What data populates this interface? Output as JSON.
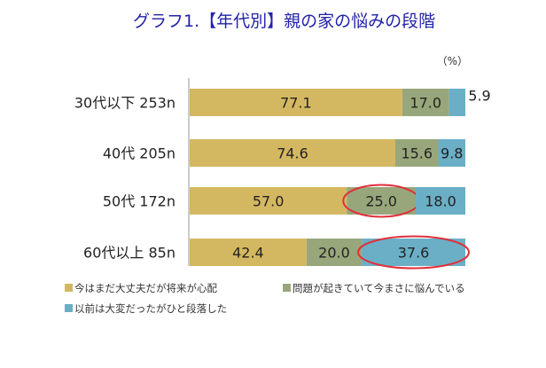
{
  "chart_data": {
    "type": "bar",
    "orientation": "horizontal",
    "stacked": true,
    "title": "グラフ1.【年代別】親の家の悩みの段階",
    "unit_label": "（%）",
    "categories": [
      "30代以下 253n",
      "40代 205n",
      "50代 172n",
      "60代以上 85n"
    ],
    "series": [
      {
        "name": "今はまだ大丈夫だが将来が心配",
        "color": "#d4b861",
        "values": [
          77.1,
          74.6,
          57.0,
          42.4
        ]
      },
      {
        "name": "問題が起きていて今まさに悩んでいる",
        "color": "#98a77b",
        "values": [
          17.0,
          15.6,
          25.0,
          20.0
        ]
      },
      {
        "name": "以前は大変だったがひと段落した",
        "color": "#6aafc6",
        "values": [
          5.9,
          9.8,
          18.0,
          37.6
        ]
      }
    ],
    "value_labels": [
      [
        "77.1",
        "17.0",
        "5.9"
      ],
      [
        "74.6",
        "15.6",
        "9.8"
      ],
      [
        "57.0",
        "25.0",
        "18.0"
      ],
      [
        "42.4",
        "20.0",
        "37.6"
      ]
    ],
    "highlights": [
      {
        "category": "50代 172n",
        "series": "問題が起きていて今まさに悩んでいる",
        "color": "#e0303a"
      },
      {
        "category": "60代以上 85n",
        "series": "以前は大変だったがひと段落した",
        "color": "#e0303a"
      }
    ],
    "xlim": [
      0,
      100
    ],
    "grid": false,
    "legend_position": "bottom",
    "title_color": "#2222aa"
  }
}
